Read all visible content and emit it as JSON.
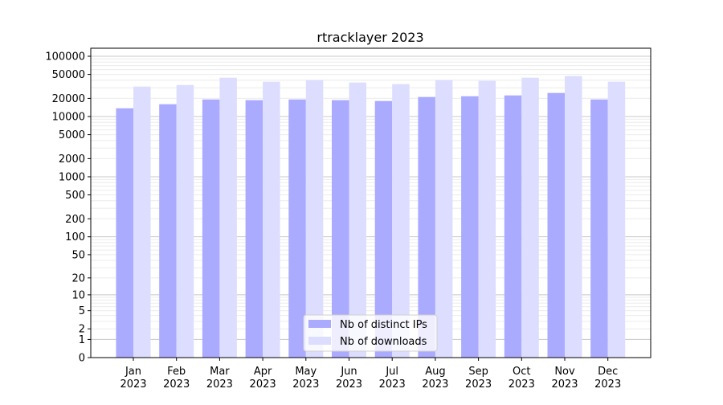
{
  "chart_data": {
    "type": "bar",
    "title": "rtracklayer 2023",
    "xlabel": "",
    "ylabel": "",
    "yscale": "symlog",
    "ylim": [
      0,
      140000
    ],
    "grid": true,
    "legend_position": "lower center",
    "categories": [
      "Jan\n2023",
      "Feb\n2023",
      "Mar\n2023",
      "Apr\n2023",
      "May\n2023",
      "Jun\n2023",
      "Jul\n2023",
      "Aug\n2023",
      "Sep\n2023",
      "Oct\n2023",
      "Nov\n2023",
      "Dec\n2023"
    ],
    "yticks": [
      0,
      1,
      2,
      5,
      10,
      20,
      50,
      100,
      200,
      500,
      1000,
      2000,
      5000,
      10000,
      20000,
      50000,
      100000
    ],
    "ytick_labels": [
      "0",
      "1",
      "2",
      "5",
      "10",
      "20",
      "50",
      "100",
      "200",
      "500",
      "1000",
      "2000",
      "5000",
      "10000",
      "20000",
      "50000",
      "100000"
    ],
    "series": [
      {
        "name": "Nb of distinct IPs",
        "color": "#aaaaff",
        "values": [
          13700,
          16000,
          19200,
          18700,
          19200,
          18700,
          18100,
          21100,
          21700,
          22400,
          24600,
          19200
        ]
      },
      {
        "name": "Nb of downloads",
        "color": "#ddddff",
        "values": [
          31400,
          33400,
          44000,
          37800,
          40200,
          36600,
          34500,
          40200,
          39000,
          44000,
          46900,
          37800
        ]
      }
    ]
  }
}
